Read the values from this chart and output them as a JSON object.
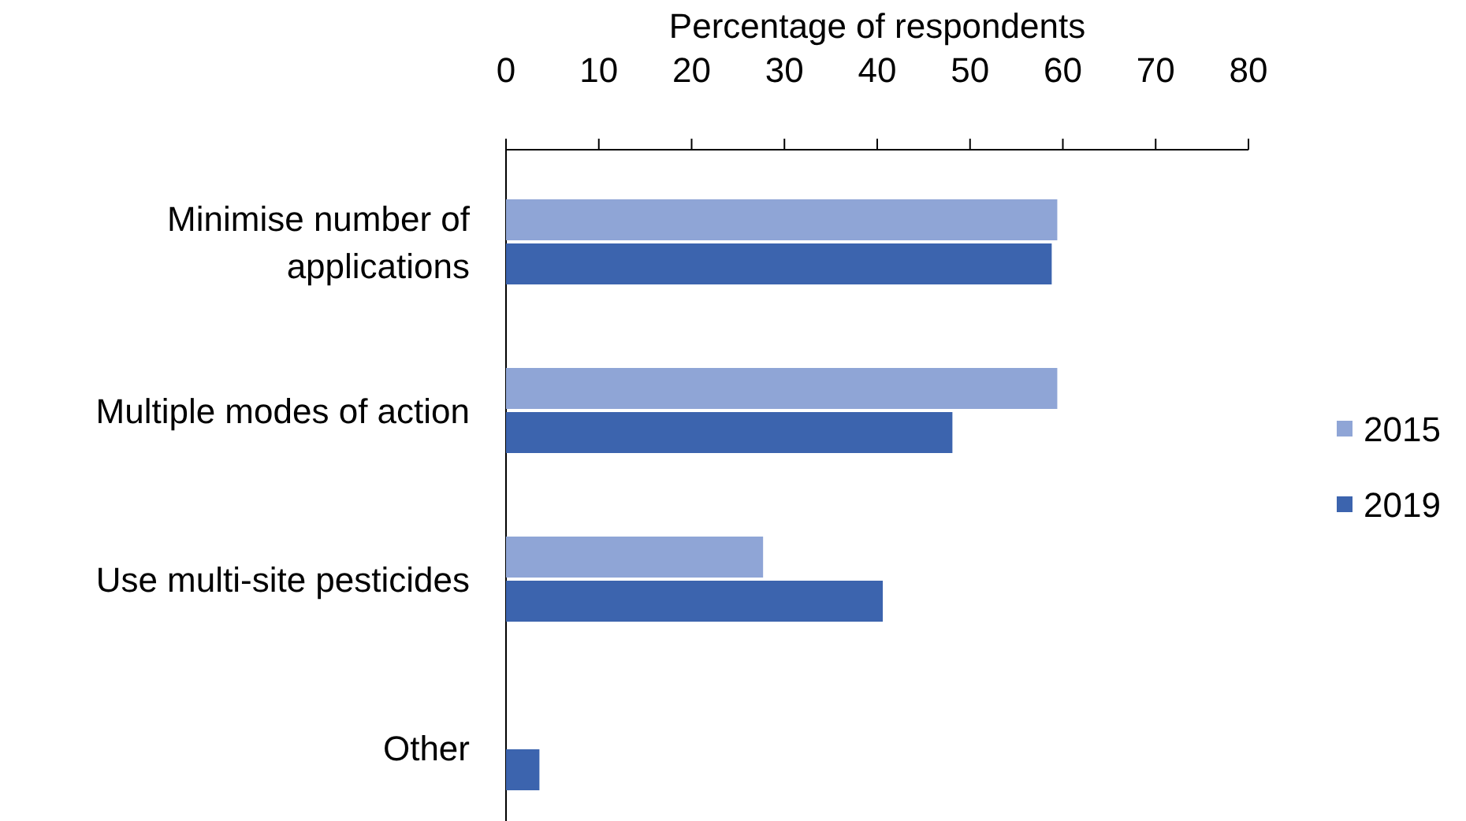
{
  "chart_data": {
    "type": "bar",
    "orientation": "horizontal",
    "xlabel": "Percentage of respondents",
    "categories": [
      "Minimise number of applications",
      "Multiple modes of action",
      "Use multi-site pesticides",
      "Other"
    ],
    "series": [
      {
        "name": "2015",
        "color": "#8fa5d6",
        "values": [
          59.4,
          59.4,
          27.7,
          null
        ]
      },
      {
        "name": "2019",
        "color": "#3c64ae",
        "values": [
          58.8,
          48.1,
          40.6,
          3.6
        ]
      }
    ],
    "xlim": [
      0,
      80
    ],
    "xticks": [
      0,
      10,
      20,
      30,
      40,
      50,
      60,
      70,
      80
    ],
    "grid": false,
    "legend": "right"
  }
}
